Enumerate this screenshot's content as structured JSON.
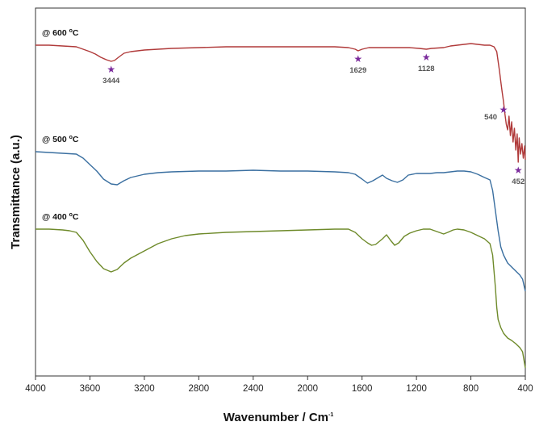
{
  "chart_data": {
    "type": "line",
    "xlabel": "Wavenumber / Cm",
    "xlabel_sup": "-1",
    "ylabel": "Transmittance (a.u.)",
    "xlim": [
      4000,
      400
    ],
    "x_reversed": true,
    "y_ticks_shown": false,
    "x_ticks": [
      "4000",
      "3600",
      "3200",
      "2800",
      "2400",
      "2000",
      "1600",
      "1200",
      "800",
      "400"
    ],
    "series": [
      {
        "name": "@ 600",
        "name_unit": "C",
        "name_unit_sup": "o",
        "color": "#b03a3a",
        "points": [
          [
            4000,
            30
          ],
          [
            3900,
            30
          ],
          [
            3800,
            31
          ],
          [
            3700,
            32
          ],
          [
            3650,
            35
          ],
          [
            3600,
            38
          ],
          [
            3560,
            41
          ],
          [
            3520,
            45
          ],
          [
            3480,
            48
          ],
          [
            3444,
            50
          ],
          [
            3420,
            49
          ],
          [
            3390,
            45
          ],
          [
            3350,
            40
          ],
          [
            3300,
            38
          ],
          [
            3200,
            36
          ],
          [
            3000,
            34
          ],
          [
            2800,
            33
          ],
          [
            2600,
            32
          ],
          [
            2400,
            32
          ],
          [
            2200,
            32
          ],
          [
            2000,
            32
          ],
          [
            1800,
            32
          ],
          [
            1700,
            33
          ],
          [
            1650,
            35
          ],
          [
            1629,
            37
          ],
          [
            1600,
            35
          ],
          [
            1550,
            33
          ],
          [
            1400,
            33
          ],
          [
            1250,
            33
          ],
          [
            1180,
            34
          ],
          [
            1128,
            35
          ],
          [
            1090,
            34
          ],
          [
            1000,
            33
          ],
          [
            950,
            31
          ],
          [
            900,
            30
          ],
          [
            850,
            29
          ],
          [
            800,
            28
          ],
          [
            750,
            29
          ],
          [
            700,
            30
          ],
          [
            660,
            30
          ],
          [
            630,
            32
          ],
          [
            610,
            38
          ],
          [
            600,
            50
          ],
          [
            590,
            62
          ],
          [
            580,
            75
          ],
          [
            570,
            88
          ],
          [
            560,
            100
          ],
          [
            550,
            115
          ],
          [
            540,
            128
          ],
          [
            530,
            135
          ],
          [
            520,
            118
          ],
          [
            510,
            142
          ],
          [
            500,
            125
          ],
          [
            490,
            150
          ],
          [
            480,
            133
          ],
          [
            470,
            160
          ],
          [
            460,
            140
          ],
          [
            452,
            175
          ],
          [
            445,
            145
          ],
          [
            435,
            165
          ],
          [
            425,
            152
          ],
          [
            415,
            170
          ],
          [
            405,
            155
          ],
          [
            400,
            172
          ]
        ]
      },
      {
        "name": "@ 500",
        "name_unit": "C",
        "name_unit_sup": "o",
        "color": "#3a6fa0",
        "points": [
          [
            4000,
            162
          ],
          [
            3900,
            163
          ],
          [
            3800,
            164
          ],
          [
            3700,
            165
          ],
          [
            3650,
            170
          ],
          [
            3600,
            178
          ],
          [
            3550,
            186
          ],
          [
            3500,
            196
          ],
          [
            3444,
            202
          ],
          [
            3400,
            203
          ],
          [
            3350,
            198
          ],
          [
            3300,
            194
          ],
          [
            3200,
            190
          ],
          [
            3100,
            188
          ],
          [
            3000,
            187
          ],
          [
            2800,
            186
          ],
          [
            2600,
            186
          ],
          [
            2400,
            185
          ],
          [
            2200,
            186
          ],
          [
            2000,
            186
          ],
          [
            1800,
            187
          ],
          [
            1700,
            188
          ],
          [
            1650,
            190
          ],
          [
            1600,
            196
          ],
          [
            1560,
            201
          ],
          [
            1520,
            198
          ],
          [
            1480,
            194
          ],
          [
            1450,
            191
          ],
          [
            1420,
            195
          ],
          [
            1380,
            198
          ],
          [
            1340,
            200
          ],
          [
            1300,
            197
          ],
          [
            1260,
            191
          ],
          [
            1200,
            189
          ],
          [
            1150,
            189
          ],
          [
            1100,
            189
          ],
          [
            1050,
            188
          ],
          [
            1000,
            188
          ],
          [
            950,
            187
          ],
          [
            900,
            186
          ],
          [
            850,
            186
          ],
          [
            800,
            187
          ],
          [
            750,
            190
          ],
          [
            700,
            194
          ],
          [
            660,
            197
          ],
          [
            640,
            210
          ],
          [
            620,
            235
          ],
          [
            600,
            260
          ],
          [
            580,
            280
          ],
          [
            560,
            290
          ],
          [
            530,
            300
          ],
          [
            500,
            305
          ],
          [
            470,
            310
          ],
          [
            440,
            315
          ],
          [
            420,
            320
          ],
          [
            400,
            335
          ]
        ]
      },
      {
        "name": "@ 400",
        "name_unit": "C",
        "name_unit_sup": "o",
        "color": "#6e8a2a",
        "points": [
          [
            4000,
            258
          ],
          [
            3900,
            258
          ],
          [
            3800,
            259
          ],
          [
            3750,
            260
          ],
          [
            3700,
            262
          ],
          [
            3650,
            272
          ],
          [
            3600,
            286
          ],
          [
            3550,
            298
          ],
          [
            3500,
            307
          ],
          [
            3444,
            311
          ],
          [
            3400,
            308
          ],
          [
            3350,
            300
          ],
          [
            3300,
            294
          ],
          [
            3200,
            285
          ],
          [
            3100,
            276
          ],
          [
            3000,
            270
          ],
          [
            2900,
            266
          ],
          [
            2800,
            264
          ],
          [
            2600,
            262
          ],
          [
            2400,
            261
          ],
          [
            2200,
            260
          ],
          [
            2000,
            259
          ],
          [
            1800,
            258
          ],
          [
            1700,
            258
          ],
          [
            1650,
            262
          ],
          [
            1600,
            270
          ],
          [
            1560,
            275
          ],
          [
            1530,
            278
          ],
          [
            1500,
            277
          ],
          [
            1450,
            270
          ],
          [
            1420,
            265
          ],
          [
            1390,
            272
          ],
          [
            1360,
            278
          ],
          [
            1330,
            275
          ],
          [
            1290,
            267
          ],
          [
            1250,
            263
          ],
          [
            1200,
            260
          ],
          [
            1150,
            258
          ],
          [
            1100,
            258
          ],
          [
            1050,
            261
          ],
          [
            1000,
            264
          ],
          [
            970,
            262
          ],
          [
            930,
            259
          ],
          [
            900,
            258
          ],
          [
            850,
            259
          ],
          [
            800,
            262
          ],
          [
            750,
            266
          ],
          [
            700,
            270
          ],
          [
            660,
            276
          ],
          [
            640,
            290
          ],
          [
            630,
            310
          ],
          [
            620,
            330
          ],
          [
            610,
            355
          ],
          [
            600,
            370
          ],
          [
            580,
            380
          ],
          [
            560,
            387
          ],
          [
            530,
            393
          ],
          [
            500,
            396
          ],
          [
            470,
            400
          ],
          [
            440,
            405
          ],
          [
            420,
            410
          ],
          [
            400,
            430
          ]
        ]
      }
    ],
    "annotations": [
      {
        "label": "3444",
        "series": 0,
        "x": 3444,
        "label_side": "below"
      },
      {
        "label": "1629",
        "series": 0,
        "x": 1629,
        "label_side": "below"
      },
      {
        "label": "1128",
        "series": 0,
        "x": 1128,
        "label_side": "below"
      },
      {
        "label": "540",
        "series": 0,
        "x": 560,
        "label_side": "below-left"
      },
      {
        "label": "452",
        "series": 0,
        "x": 452,
        "label_side": "below"
      }
    ],
    "marker_symbol": "★",
    "marker_color": "#7b2b9c"
  }
}
